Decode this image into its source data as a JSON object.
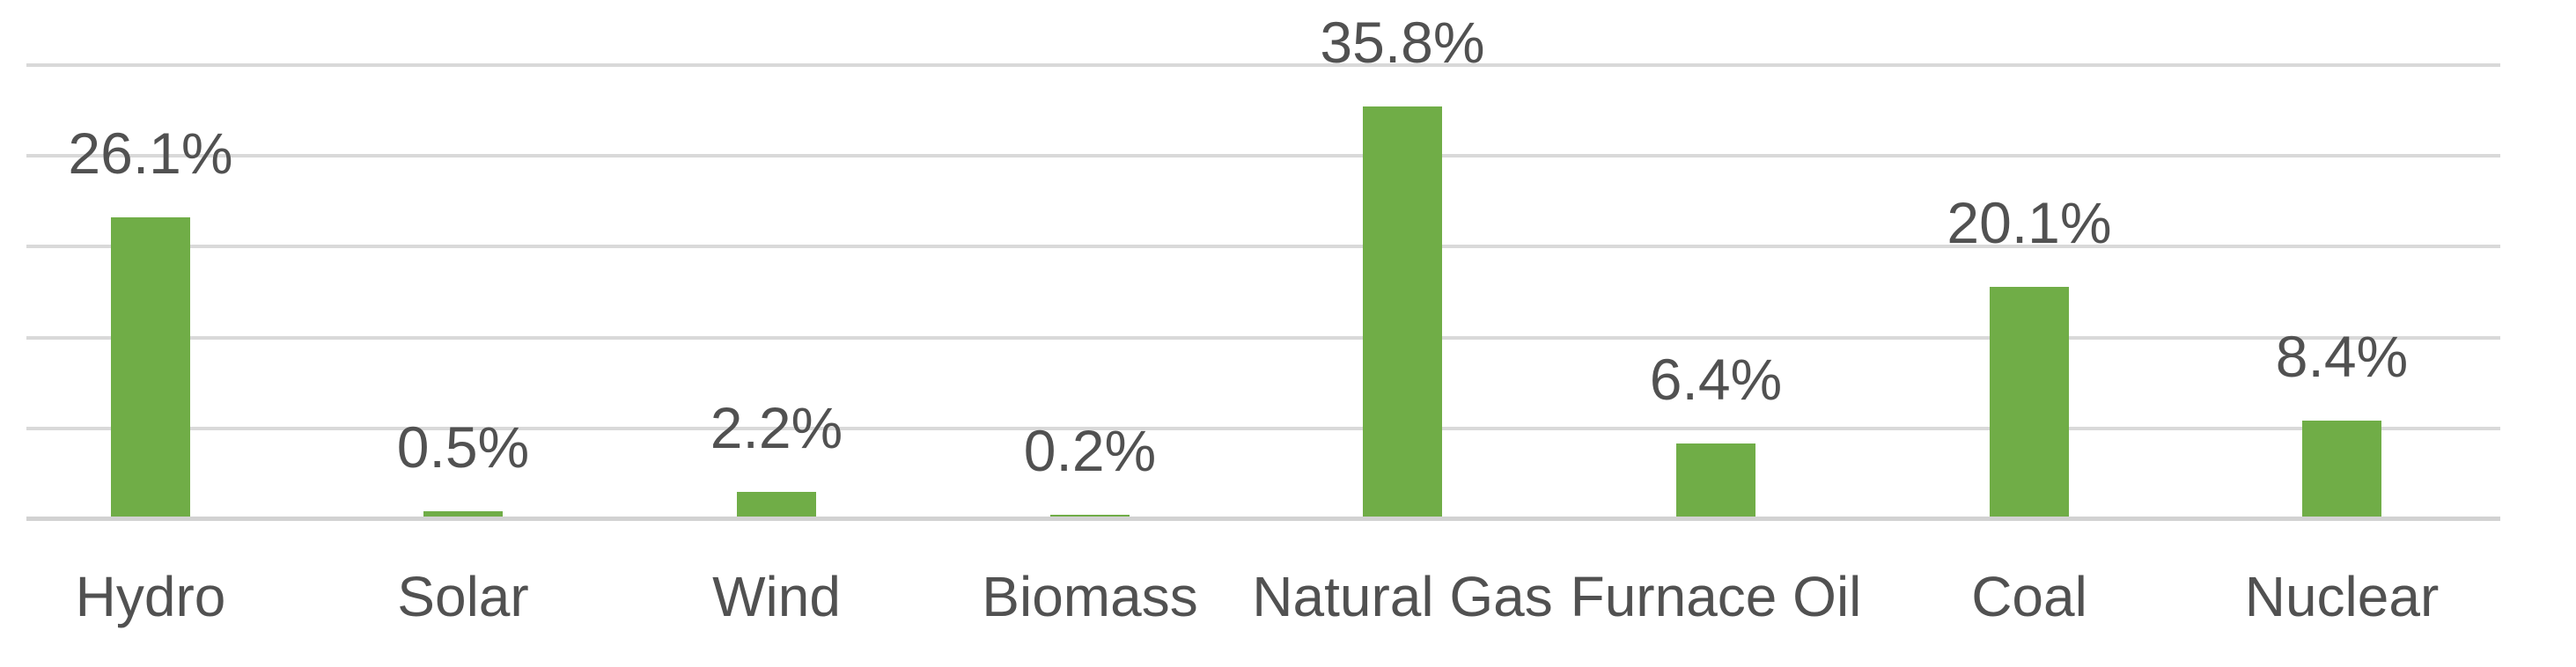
{
  "chart_data": {
    "type": "bar",
    "title": "",
    "xlabel": "",
    "ylabel": "",
    "categories": [
      "Hydro",
      "Solar",
      "Wind",
      "Biomass",
      "Natural Gas",
      "Furnace Oil",
      "Coal",
      "Nuclear"
    ],
    "values": [
      26.1,
      0.5,
      2.2,
      0.2,
      35.8,
      6.4,
      20.1,
      8.4
    ],
    "data_labels": [
      "26.1%",
      "0.5%",
      "2.2%",
      "0.2%",
      "35.8%",
      "6.4%",
      "20.1%",
      "8.4%"
    ],
    "ylim": [
      0,
      40
    ],
    "gridline_interval_pct": 8,
    "grid": true,
    "legend": false,
    "axis_tick_labels_visible": false,
    "colors": {
      "bar": "#70AD47",
      "gridline": "#D9D9D9",
      "axis_line": "#D2D2D2",
      "label_text": "#515151",
      "background": "#FFFFFF"
    }
  }
}
